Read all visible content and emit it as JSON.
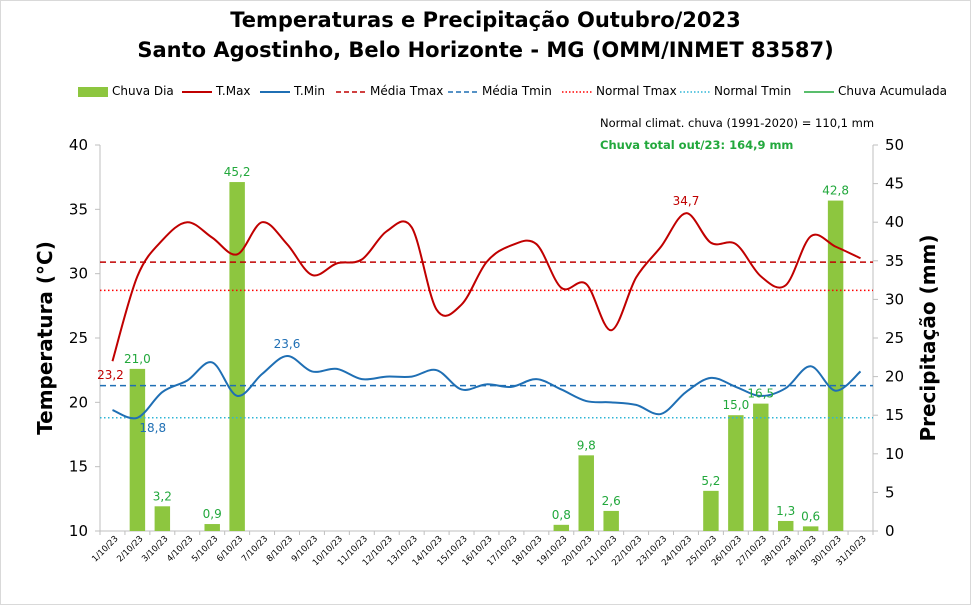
{
  "title_line1": "Temperaturas e Precipitação Outubro/2023",
  "title_line2": "Santo Agostinho, Belo Horizonte - MG (OMM/INMET 83587)",
  "legend": [
    {
      "label": "Chuva Dia",
      "style": "bar",
      "color": "#8dc63f"
    },
    {
      "label": "T.Max",
      "style": "solid",
      "color": "#c00000"
    },
    {
      "label": "T.Min",
      "style": "solid",
      "color": "#1f6fb4"
    },
    {
      "label": "Média Tmax",
      "style": "dashed",
      "color": "#c00000"
    },
    {
      "label": "Média Tmin",
      "style": "dashed",
      "color": "#1f6fb4"
    },
    {
      "label": "Normal Tmax",
      "style": "dotted",
      "color": "#ff0000"
    },
    {
      "label": "Normal Tmin",
      "style": "dotted",
      "color": "#2eb5d6"
    },
    {
      "label": "Chuva Acumulada",
      "style": "solid",
      "color": "#22a83c"
    }
  ],
  "notes": {
    "normal": "Normal climat. chuva (1991-2020) = 110,1 mm",
    "total": "Chuva total out/23: 164,9 mm"
  },
  "chart_data": {
    "type": "bar+line",
    "title": "Temperaturas e Precipitação Outubro/2023 - Santo Agostinho, Belo Horizonte - MG (OMM/INMET 83587)",
    "ylabel": "Temperatura (°C)",
    "y2label": "Precipitação (mm)",
    "ylim": [
      10,
      40
    ],
    "y2lim": [
      0,
      50
    ],
    "yticks": [
      10,
      15,
      20,
      25,
      30,
      35,
      40
    ],
    "y2ticks": [
      0,
      5,
      10,
      15,
      20,
      25,
      30,
      35,
      40,
      45,
      50
    ],
    "categories": [
      "1/10/23",
      "2/10/23",
      "3/10/23",
      "4/10/23",
      "5/10/23",
      "6/10/23",
      "7/10/23",
      "8/10/23",
      "9/10/23",
      "10/10/23",
      "11/10/23",
      "12/10/23",
      "13/10/23",
      "14/10/23",
      "15/10/23",
      "16/10/23",
      "17/10/23",
      "18/10/23",
      "19/10/23",
      "20/10/23",
      "21/10/23",
      "22/10/23",
      "23/10/23",
      "24/10/23",
      "25/10/23",
      "26/10/23",
      "27/10/23",
      "28/10/23",
      "29/10/23",
      "30/10/23",
      "31/10/23"
    ],
    "series": [
      {
        "name": "Chuva Dia",
        "axis": "right",
        "type": "bar",
        "color": "#8dc63f",
        "values": [
          0,
          21.0,
          3.2,
          0,
          0.9,
          45.2,
          0,
          0,
          0,
          0,
          0,
          0,
          0,
          0,
          0,
          0,
          0,
          0,
          0.8,
          9.8,
          2.6,
          0,
          0,
          0,
          5.2,
          15.0,
          16.5,
          1.3,
          0.6,
          42.8,
          0
        ],
        "labels": [
          "",
          "21,0",
          "3,2",
          "",
          "0,9",
          "45,2",
          "",
          "",
          "",
          "",
          "",
          "",
          "",
          "",
          "",
          "",
          "",
          "",
          "0,8",
          "9,8",
          "2,6",
          "",
          "",
          "",
          "5,2",
          "15,0",
          "16,5",
          "1,3",
          "0,6",
          "42,8",
          ""
        ]
      },
      {
        "name": "T.Max",
        "axis": "left",
        "type": "line",
        "color": "#c00000",
        "values": [
          23.2,
          29.8,
          32.6,
          34.0,
          32.8,
          31.5,
          34.0,
          32.3,
          29.9,
          30.8,
          31.1,
          33.3,
          33.6,
          27.2,
          27.6,
          30.9,
          32.2,
          32.3,
          28.9,
          29.2,
          25.6,
          29.7,
          32.1,
          34.7,
          32.4,
          32.3,
          29.8,
          29.1,
          32.9,
          32.1,
          31.2
        ]
      },
      {
        "name": "T.Min",
        "axis": "left",
        "type": "line",
        "color": "#1f6fb4",
        "values": [
          19.4,
          18.8,
          20.8,
          21.7,
          23.1,
          20.5,
          22.2,
          23.6,
          22.4,
          22.6,
          21.8,
          22.0,
          22.0,
          22.5,
          21.0,
          21.4,
          21.2,
          21.8,
          21.0,
          20.1,
          20.0,
          19.8,
          19.1,
          20.8,
          21.9,
          21.2,
          20.5,
          21.1,
          22.8,
          20.9,
          22.4
        ]
      },
      {
        "name": "Média Tmax",
        "axis": "left",
        "type": "hline",
        "color": "#c00000",
        "value": 30.9
      },
      {
        "name": "Média Tmin",
        "axis": "left",
        "type": "hline",
        "color": "#1f6fb4",
        "value": 21.3
      },
      {
        "name": "Normal Tmax",
        "axis": "left",
        "type": "hline",
        "color": "#ff0000",
        "value": 28.7
      },
      {
        "name": "Normal Tmin",
        "axis": "left",
        "type": "hline",
        "color": "#2eb5d6",
        "value": 18.8
      }
    ],
    "annotations": [
      {
        "series": "T.Max",
        "index": 0,
        "text": "23,2"
      },
      {
        "series": "T.Max",
        "index": 23,
        "text": "34,7"
      },
      {
        "series": "T.Min",
        "index": 1,
        "text": "18,8"
      },
      {
        "series": "T.Min",
        "index": 7,
        "text": "23,6"
      }
    ]
  }
}
